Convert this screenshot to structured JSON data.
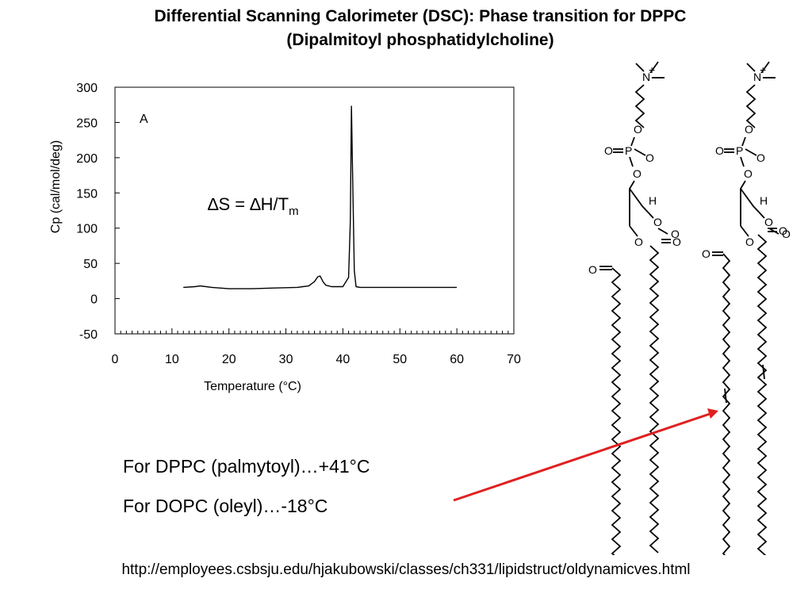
{
  "title": {
    "line1": "Differential Scanning Calorimeter (DSC):  Phase transition for DPPC",
    "line2": "(Dipalmitoyl phosphatidylcholine)"
  },
  "chart_data": {
    "type": "line",
    "title": "",
    "panel_label": "A",
    "xlabel": "Temperature (°C)",
    "ylabel": "Cp (cal/mol/deg)",
    "xlim": [
      0,
      70
    ],
    "ylim": [
      -50,
      300
    ],
    "x_ticks": [
      "0",
      "10",
      "20",
      "30",
      "40",
      "50",
      "60",
      "70"
    ],
    "y_ticks": [
      "300",
      "250",
      "200",
      "150",
      "100",
      "50",
      "0",
      "-50"
    ],
    "annotation": {
      "delta_s": "∆S = ∆H/T",
      "subscript": "m"
    },
    "series": [
      {
        "x": [
          12,
          14,
          15,
          17,
          20,
          24,
          28,
          32,
          34,
          35,
          35.6,
          36,
          36.5,
          37,
          38,
          40,
          41,
          41.3,
          41.5,
          41.7,
          42,
          42.3,
          43,
          45,
          50,
          55,
          60
        ],
        "y": [
          16,
          17,
          18,
          16,
          14,
          14,
          15,
          16,
          18,
          24,
          31,
          32,
          24,
          19,
          17,
          17,
          30,
          110,
          273,
          180,
          40,
          17,
          16,
          16,
          16,
          16,
          16
        ]
      }
    ]
  },
  "notes": {
    "dppc": "For DPPC (palmytoyl)…+41°C",
    "dopc": "For DOPC (oleyl)…-18°C"
  },
  "source_url": "http://employees.csbsju.edu/hjakubowski/classes/ch331/lipidstruct/oldynamicves.html",
  "molecule_labels": {
    "nitrogen": "N",
    "phosphorus": "P",
    "oxygen": "O",
    "hydrogen": "H",
    "plus": "+",
    "minus": "-"
  },
  "colors": {
    "arrow": "#e02020",
    "line": "#000000"
  }
}
